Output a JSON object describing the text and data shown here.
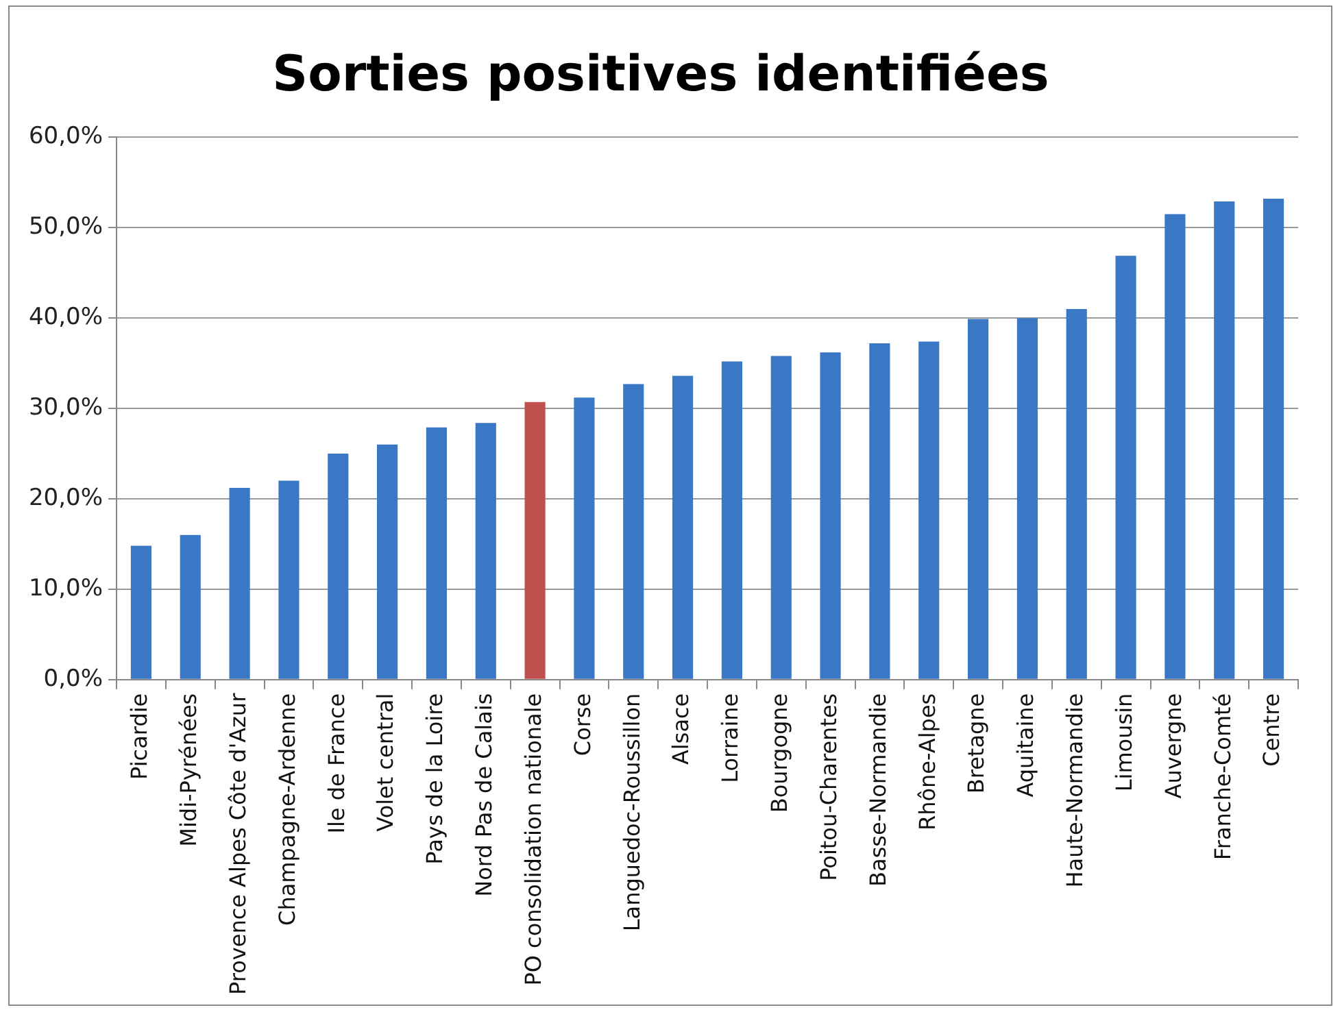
{
  "chart_data": {
    "type": "bar",
    "title": "Sorties positives identifiées",
    "categories": [
      "Picardie",
      "Midi-Pyrénées",
      "Provence Alpes Côte d'Azur",
      "Champagne-Ardenne",
      "Ile de France",
      "Volet central",
      "Pays de la Loire",
      "Nord Pas de Calais",
      "PO consolidation nationale",
      "Corse",
      "Languedoc-Roussillon",
      "Alsace",
      "Lorraine",
      "Bourgogne",
      "Poitou-Charentes",
      "Basse-Normandie",
      "Rhône-Alpes",
      "Bretagne",
      "Aquitaine",
      "Haute-Normandie",
      "Limousin",
      "Auvergne",
      "Franche-Comté",
      "Centre"
    ],
    "values": [
      14.8,
      16.0,
      21.2,
      22.0,
      25.0,
      26.0,
      27.9,
      28.4,
      30.7,
      31.2,
      32.7,
      33.6,
      35.2,
      35.8,
      36.2,
      37.2,
      37.4,
      39.9,
      40.0,
      41.0,
      46.9,
      51.5,
      52.9,
      53.2
    ],
    "colors": [
      "#3a78c6",
      "#3a78c6",
      "#3a78c6",
      "#3a78c6",
      "#3a78c6",
      "#3a78c6",
      "#3a78c6",
      "#3a78c6",
      "#c0504d",
      "#3a78c6",
      "#3a78c6",
      "#3a78c6",
      "#3a78c6",
      "#3a78c6",
      "#3a78c6",
      "#3a78c6",
      "#3a78c6",
      "#3a78c6",
      "#3a78c6",
      "#3a78c6",
      "#3a78c6",
      "#3a78c6",
      "#3a78c6",
      "#3a78c6"
    ],
    "ylim": [
      0,
      60
    ],
    "yticks": [
      {
        "value": 0,
        "label": "0,0%"
      },
      {
        "value": 10,
        "label": "10,0%"
      },
      {
        "value": 20,
        "label": "20,0%"
      },
      {
        "value": 30,
        "label": "30,0%"
      },
      {
        "value": 40,
        "label": "40,0%"
      },
      {
        "value": 50,
        "label": "50,0%"
      },
      {
        "value": 60,
        "label": "60,0%"
      }
    ],
    "grid": "y",
    "legend": false
  }
}
